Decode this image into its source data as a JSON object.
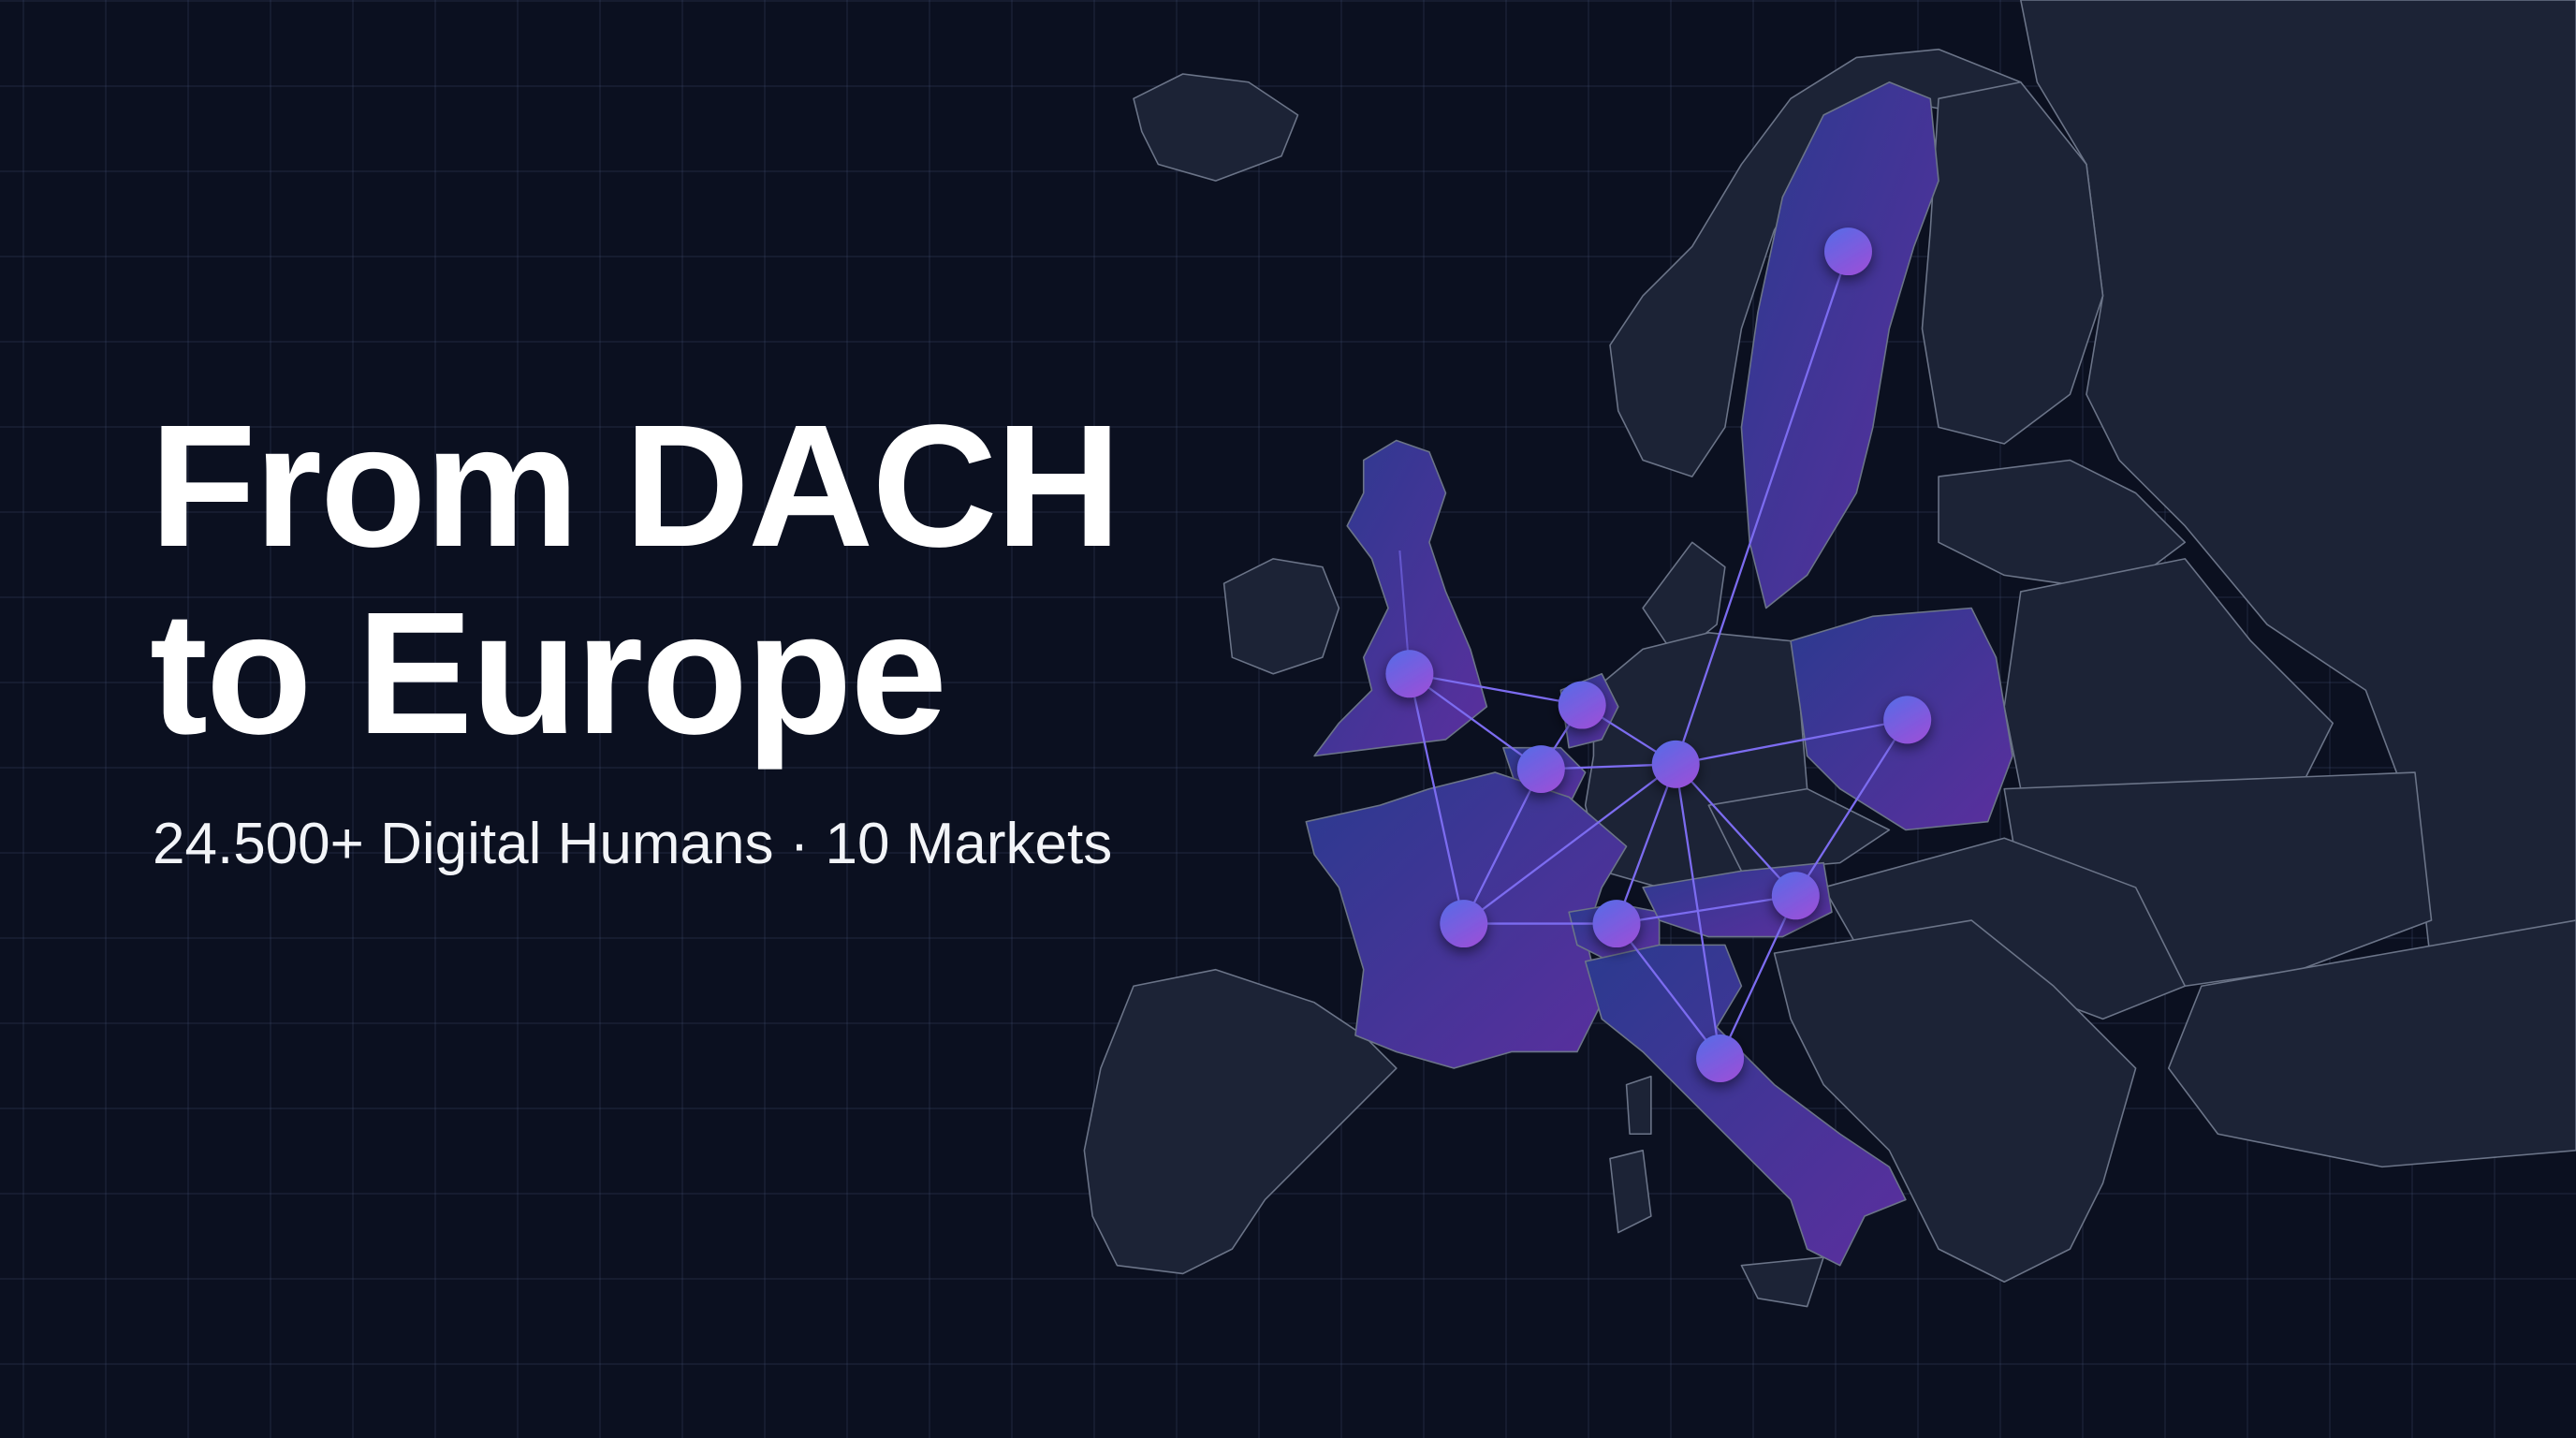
{
  "headline": {
    "line1": "From DACH",
    "line2": "to Europe"
  },
  "subtitle": "24.500+ Digital Humans · 10 Markets",
  "colors": {
    "background": "#0b1020",
    "land": "#1c2336",
    "border": "#6b7488",
    "highlight_start": "#2b3a8f",
    "highlight_end": "#5b2f9e",
    "node_start": "#5a6ae6",
    "node_end": "#9a4fd8",
    "connection": "#7c6cf0"
  },
  "map": {
    "highlighted_markets_count": 10
  }
}
